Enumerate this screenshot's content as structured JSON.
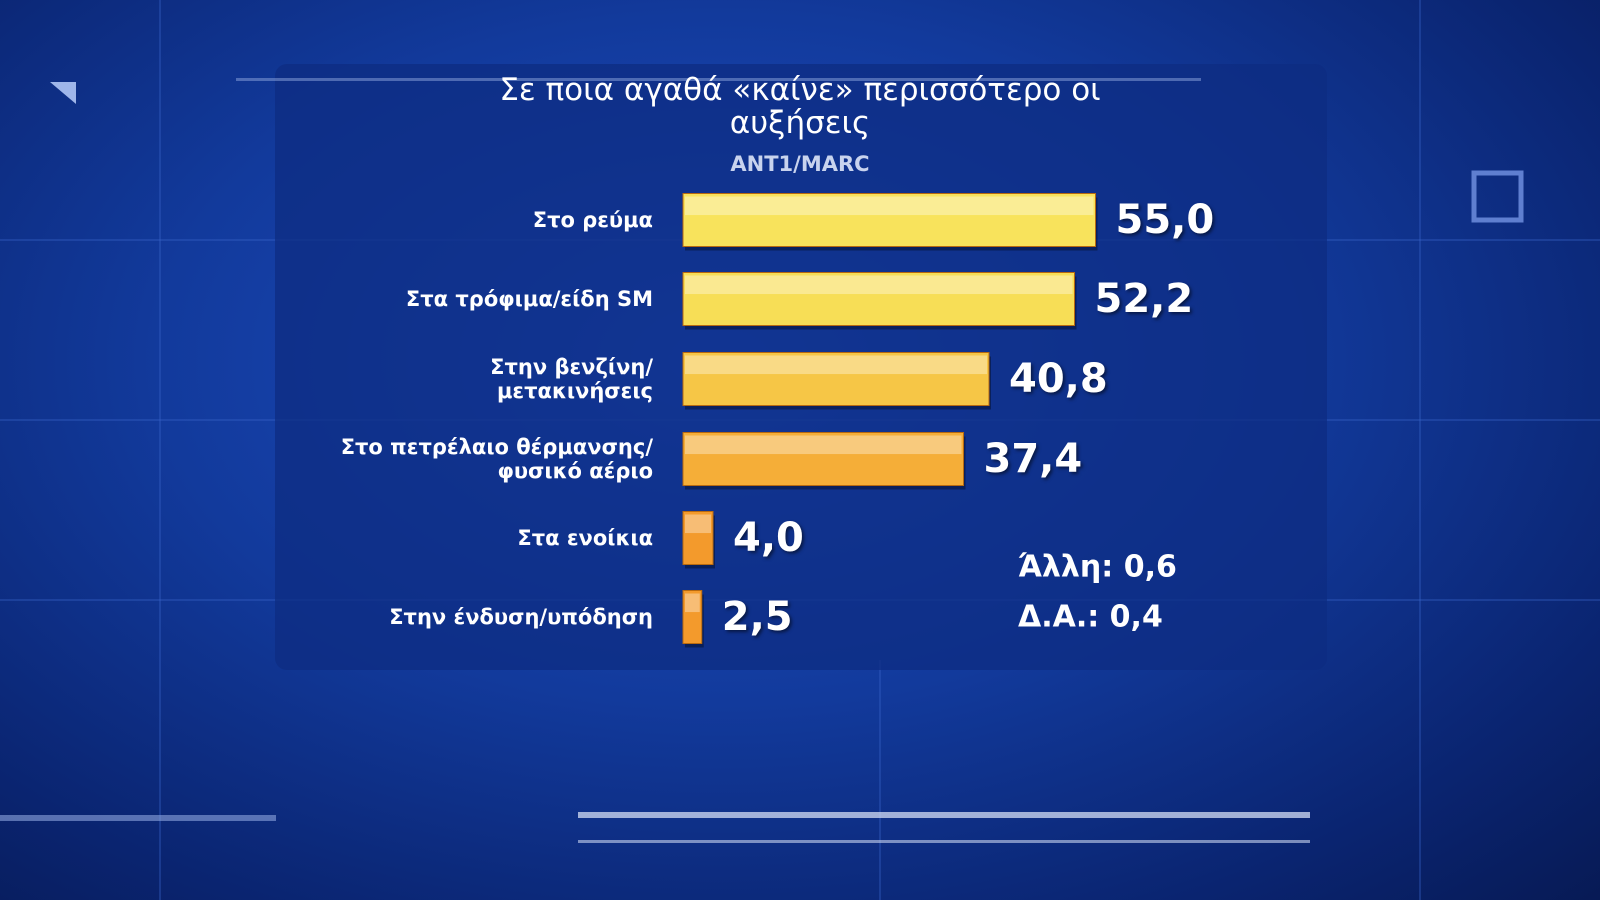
{
  "chart_data": {
    "type": "bar",
    "orientation": "horizontal",
    "title": "Σε ποια αγαθά «καίνε» περισσότερο οι αυξήσεις",
    "subtitle": "ANT1/MARC",
    "categories": [
      "Στο ρεύμα",
      "Στα τρόφιμα/είδη SM",
      "Στην βενζίνη/\nμετακινήσεις",
      "Στο πετρέλαιο θέρμανσης/\nφυσικό αέριο",
      "Στα ενοίκια",
      "Στην ένδυση/υπόδηση"
    ],
    "values": [
      55.0,
      52.2,
      40.8,
      37.4,
      4.0,
      2.5
    ],
    "value_labels": [
      "55,0",
      "52,2",
      "40,8",
      "37,4",
      "4,0",
      "2,5"
    ],
    "colors": [
      "#f8e35c",
      "#f7de56",
      "#f6c646",
      "#f5ae38",
      "#f39a2c",
      "#f39a2c"
    ],
    "annotations": [
      "Άλλη: 0,6",
      "Δ.Α.: 0,4"
    ]
  }
}
